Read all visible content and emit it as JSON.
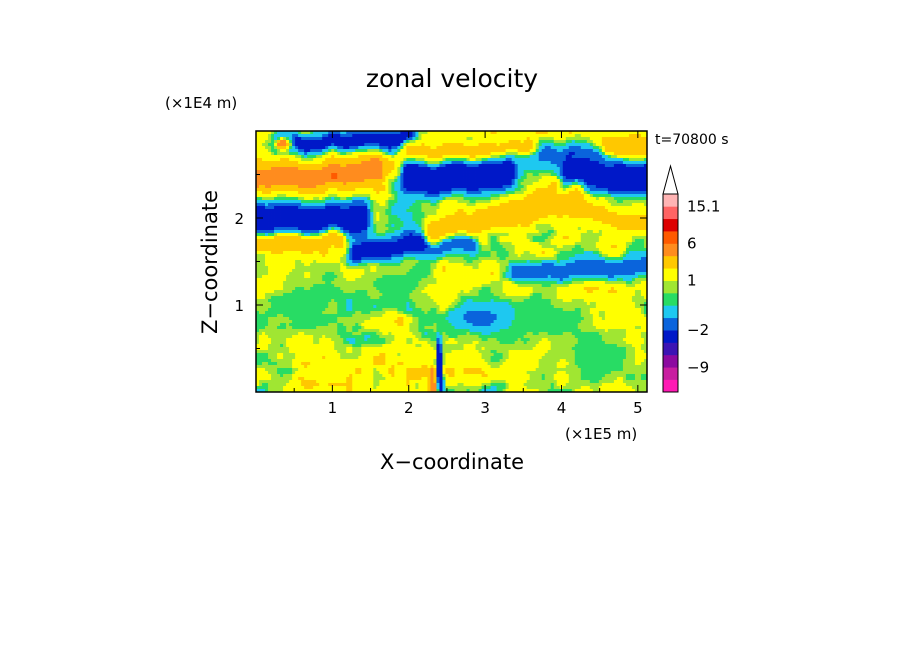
{
  "chart_data": {
    "type": "heatmap",
    "title": "zonal velocity",
    "xlabel": "X−coordinate",
    "ylabel": "Z−coordinate",
    "x_scale_label": "(×1E5 m)",
    "y_scale_label": "(×1E4 m)",
    "time_label": "t=70800 s",
    "xlim": [
      0,
      5.12
    ],
    "ylim": [
      0,
      3.0
    ],
    "x_ticks": [
      1,
      2,
      3,
      4,
      5
    ],
    "x_tick_labels": [
      "1",
      "2",
      "3",
      "4",
      "5"
    ],
    "y_ticks": [
      1,
      2
    ],
    "y_tick_labels": [
      "1",
      "2"
    ],
    "colorbar": {
      "tick_values": [
        15.1,
        6,
        1,
        -2,
        -9
      ],
      "tick_labels": [
        "15.1",
        "6",
        "1",
        "−2",
        "−9"
      ],
      "bands": [
        {
          "color": "#ff1ab4"
        },
        {
          "color": "#c81ea0"
        },
        {
          "color": "#8c0aa0"
        },
        {
          "color": "#3c14b4"
        },
        {
          "color": "#0018c8"
        },
        {
          "color": "#0a64dc"
        },
        {
          "color": "#1ec8f0"
        },
        {
          "color": "#28dc64"
        },
        {
          "color": "#a0e632"
        },
        {
          "color": "#ffff00"
        },
        {
          "color": "#ffc800"
        },
        {
          "color": "#ff8c1e"
        },
        {
          "color": "#ff5a00"
        },
        {
          "color": "#dc0000"
        },
        {
          "color": "#ff6464"
        },
        {
          "color": "#ffb4b4"
        }
      ]
    },
    "field_levels": [
      {
        "value": -9,
        "color": "#0018c8"
      },
      {
        "value": -4,
        "color": "#0a64dc"
      },
      {
        "value": -2,
        "color": "#1ec8f0"
      },
      {
        "value": 0,
        "color": "#28dc64"
      },
      {
        "value": 1,
        "color": "#a0e632"
      },
      {
        "value": 2,
        "color": "#ffff00"
      },
      {
        "value": 4,
        "color": "#ffc800"
      },
      {
        "value": 6,
        "color": "#ff8c1e"
      },
      {
        "value": 9,
        "color": "#ff5a00"
      },
      {
        "value": 12,
        "color": "#dc0000"
      }
    ],
    "features": [
      {
        "kind": "band",
        "value": -8,
        "x0": 0.0,
        "x1": 1.4,
        "z0": 2.0,
        "z1": 2.0,
        "width": 0.22
      },
      {
        "kind": "band",
        "value": -7,
        "x0": 1.3,
        "x1": 2.8,
        "z0": 1.6,
        "z1": 1.75,
        "width": 0.14
      },
      {
        "kind": "band",
        "value": -9,
        "x0": 2.0,
        "x1": 3.3,
        "z0": 2.45,
        "z1": 2.5,
        "width": 0.2
      },
      {
        "kind": "band",
        "value": -9,
        "x0": 4.1,
        "x1": 5.12,
        "z0": 2.55,
        "z1": 2.45,
        "width": 0.2
      },
      {
        "kind": "band",
        "value": -7,
        "x0": 0.3,
        "x1": 2.0,
        "z0": 2.85,
        "z1": 2.9,
        "width": 0.13
      },
      {
        "kind": "band",
        "value": -4,
        "x0": 3.2,
        "x1": 4.6,
        "z0": 2.75,
        "z1": 2.65,
        "width": 0.12
      },
      {
        "kind": "band",
        "value": 7,
        "x0": 0.0,
        "x1": 1.6,
        "z0": 2.45,
        "z1": 2.55,
        "width": 0.22
      },
      {
        "kind": "band",
        "value": 6,
        "x0": 2.3,
        "x1": 4.2,
        "z0": 1.85,
        "z1": 2.2,
        "width": 0.18
      },
      {
        "kind": "band",
        "value": 6,
        "x0": 0.0,
        "x1": 1.1,
        "z0": 1.7,
        "z1": 1.75,
        "width": 0.12
      },
      {
        "kind": "band",
        "value": 5,
        "x0": 4.2,
        "x1": 5.12,
        "z0": 2.1,
        "z1": 1.9,
        "width": 0.14
      },
      {
        "kind": "band",
        "value": 5,
        "x0": 2.0,
        "x1": 3.6,
        "z0": 2.75,
        "z1": 2.8,
        "width": 0.12
      },
      {
        "kind": "band",
        "value": 6,
        "x0": 4.6,
        "x1": 5.12,
        "z0": 2.85,
        "z1": 2.8,
        "width": 0.14
      },
      {
        "kind": "band",
        "value": -4,
        "x0": 3.4,
        "x1": 5.12,
        "z0": 1.35,
        "z1": 1.45,
        "width": 0.12
      },
      {
        "kind": "blob",
        "value": 0.5,
        "x": 0.6,
        "z": 1.0,
        "rx": 0.6,
        "rz": 0.35
      },
      {
        "kind": "blob",
        "value": 0.5,
        "x": 3.8,
        "z": 0.8,
        "rx": 0.8,
        "rz": 0.3
      },
      {
        "kind": "blob",
        "value": -3,
        "x": 2.9,
        "z": 0.85,
        "rx": 0.45,
        "rz": 0.18
      },
      {
        "kind": "blob",
        "value": 0.3,
        "x": 1.8,
        "z": 1.25,
        "rx": 0.6,
        "rz": 0.2
      },
      {
        "kind": "blob",
        "value": 0.4,
        "x": 4.5,
        "z": 0.35,
        "rx": 0.5,
        "rz": 0.3
      },
      {
        "kind": "blob",
        "value": 11,
        "x": 1.02,
        "z": 2.48,
        "rx": 0.06,
        "rz": 0.06
      },
      {
        "kind": "blob",
        "value": 9,
        "x": 0.35,
        "z": 2.85,
        "rx": 0.12,
        "rz": 0.08
      },
      {
        "kind": "wedge",
        "value": -9,
        "x": 2.4,
        "z0": 0.0,
        "z1": 0.75,
        "halfwidth": 0.05
      },
      {
        "kind": "wedge",
        "value": 7,
        "x": 2.32,
        "z0": 0.0,
        "z1": 0.35,
        "halfwidth": 0.08
      }
    ]
  }
}
